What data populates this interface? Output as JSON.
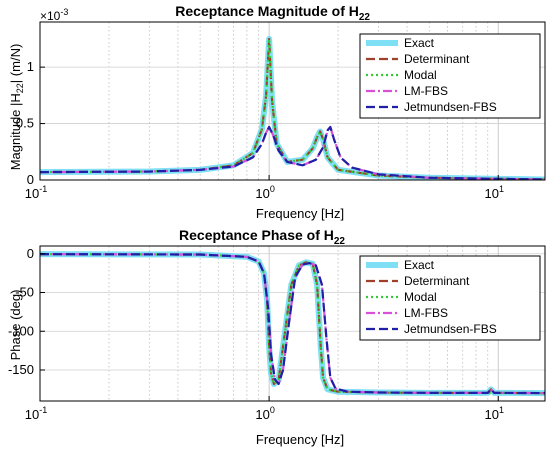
{
  "chart_data": [
    {
      "type": "line",
      "title": "Receptance Magnitude of H",
      "title_subscript": "22",
      "xlabel": "Frequency [Hz]",
      "ylabel_pre": "Magnitude  |H",
      "ylabel_subscript": "22",
      "ylabel_post": "|  (m/N)",
      "xscale": "log",
      "xlim": [
        0.1,
        16
      ],
      "ylim": [
        0,
        0.0014
      ],
      "y_exponent_label": "×10",
      "y_exponent_power": "-3",
      "x_ticks": [
        {
          "base": "10",
          "power": "-1"
        },
        {
          "base": "10",
          "power": "0"
        },
        {
          "base": "10",
          "power": "1"
        }
      ],
      "y_ticks": [
        "0",
        "0.5",
        "1"
      ],
      "legend_position": "top-right",
      "series": [
        {
          "name": "Exact",
          "color": "#7fe0f5",
          "style": "solid",
          "x": [
            0.1,
            0.3,
            0.5,
            0.7,
            0.85,
            0.93,
            0.97,
            1.0,
            1.03,
            1.08,
            1.2,
            1.4,
            1.55,
            1.62,
            1.67,
            1.72,
            1.8,
            2.0,
            3,
            5,
            10,
            16
          ],
          "y": [
            7e-05,
            7.5e-05,
            9e-05,
            0.00013,
            0.00024,
            0.00045,
            0.00075,
            0.00125,
            0.0007,
            0.00032,
            0.00016,
            0.00018,
            0.00028,
            0.00038,
            0.00043,
            0.00036,
            0.0002,
            9e-05,
            4e-05,
            2e-05,
            1e-05,
            5e-06
          ]
        },
        {
          "name": "Determinant",
          "color": "#a0402a",
          "style": "dashed",
          "x": [
            0.1,
            0.3,
            0.5,
            0.7,
            0.85,
            0.93,
            0.97,
            1.0,
            1.03,
            1.08,
            1.2,
            1.4,
            1.55,
            1.62,
            1.67,
            1.72,
            1.8,
            2.0,
            3,
            5,
            10,
            16
          ],
          "y": [
            7e-05,
            7.5e-05,
            9e-05,
            0.00013,
            0.00024,
            0.00045,
            0.00075,
            0.00125,
            0.0007,
            0.00032,
            0.00016,
            0.00018,
            0.00028,
            0.00038,
            0.00043,
            0.00036,
            0.0002,
            9e-05,
            4e-05,
            2e-05,
            1e-05,
            5e-06
          ]
        },
        {
          "name": "Modal",
          "color": "#33cc33",
          "style": "dotted",
          "x": [
            0.1,
            0.3,
            0.5,
            0.7,
            0.85,
            0.93,
            0.97,
            1.0,
            1.03,
            1.08,
            1.2,
            1.4,
            1.55,
            1.62,
            1.67,
            1.72,
            1.8,
            2.0,
            3,
            5,
            10,
            16
          ],
          "y": [
            7e-05,
            7.5e-05,
            9e-05,
            0.00013,
            0.00024,
            0.00045,
            0.00075,
            0.00125,
            0.0007,
            0.00032,
            0.00016,
            0.00018,
            0.00028,
            0.00038,
            0.00043,
            0.00036,
            0.0002,
            9e-05,
            4e-05,
            2e-05,
            1e-05,
            5e-06
          ]
        },
        {
          "name": "LM-FBS",
          "color": "#d94fd9",
          "style": "dashdot",
          "x": [
            0.1,
            0.3,
            0.5,
            0.7,
            0.85,
            0.93,
            0.97,
            1.0,
            1.04,
            1.1,
            1.2,
            1.4,
            1.6,
            1.72,
            1.8,
            1.85,
            1.92,
            2.05,
            2.3,
            3,
            5,
            10,
            16
          ],
          "y": [
            7e-05,
            7.5e-05,
            9e-05,
            0.00012,
            0.0002,
            0.00032,
            0.00042,
            0.00047,
            0.0004,
            0.00026,
            0.00016,
            0.00013,
            0.00018,
            0.00029,
            0.00044,
            0.00047,
            0.00036,
            0.0002,
            0.00011,
            5e-05,
            2e-05,
            1e-05,
            5e-06
          ]
        },
        {
          "name": "Jetmundsen-FBS",
          "color": "#1f1fa8",
          "style": "dashed",
          "x": [
            0.1,
            0.3,
            0.5,
            0.7,
            0.85,
            0.93,
            0.97,
            1.0,
            1.04,
            1.1,
            1.2,
            1.4,
            1.6,
            1.72,
            1.8,
            1.85,
            1.92,
            2.05,
            2.3,
            3,
            5,
            10,
            16
          ],
          "y": [
            7e-05,
            7.5e-05,
            9e-05,
            0.00012,
            0.0002,
            0.00032,
            0.00042,
            0.00047,
            0.0004,
            0.00026,
            0.00016,
            0.00013,
            0.00018,
            0.00029,
            0.00044,
            0.00047,
            0.00036,
            0.0002,
            0.00011,
            5e-05,
            2e-05,
            1e-05,
            5e-06
          ]
        }
      ]
    },
    {
      "type": "line",
      "title": "Receptance Phase of H",
      "title_subscript": "22",
      "xlabel": "Frequency [Hz]",
      "ylabel": "Phase (deg)",
      "xscale": "log",
      "xlim": [
        0.1,
        16
      ],
      "ylim": [
        -190,
        10
      ],
      "x_ticks": [
        {
          "base": "10",
          "power": "-1"
        },
        {
          "base": "10",
          "power": "0"
        },
        {
          "base": "10",
          "power": "1"
        }
      ],
      "y_ticks": [
        "0",
        "-50",
        "-100",
        "-150"
      ],
      "legend_position": "top-right",
      "series": [
        {
          "name": "Exact",
          "color": "#7fe0f5",
          "style": "solid",
          "x": [
            0.1,
            0.5,
            0.8,
            0.9,
            0.95,
            0.98,
            1.0,
            1.02,
            1.05,
            1.1,
            1.15,
            1.25,
            1.35,
            1.45,
            1.55,
            1.62,
            1.68,
            1.72,
            1.8,
            2.0,
            3,
            5,
            9,
            9.3,
            9.6,
            16
          ],
          "y": [
            -0.5,
            -1,
            -4,
            -10,
            -25,
            -60,
            -120,
            -155,
            -168,
            -163,
            -120,
            -40,
            -15,
            -11,
            -13,
            -40,
            -120,
            -160,
            -175,
            -178,
            -179,
            -179.5,
            -179.5,
            -175,
            -179.5,
            -179.8
          ]
        },
        {
          "name": "Determinant",
          "color": "#a0402a",
          "style": "dashed",
          "x": [
            0.1,
            0.5,
            0.8,
            0.9,
            0.95,
            0.98,
            1.0,
            1.02,
            1.05,
            1.1,
            1.15,
            1.25,
            1.35,
            1.45,
            1.55,
            1.62,
            1.68,
            1.72,
            1.8,
            2.0,
            3,
            5,
            9,
            9.3,
            9.6,
            16
          ],
          "y": [
            -0.5,
            -1,
            -4,
            -10,
            -25,
            -60,
            -120,
            -155,
            -168,
            -163,
            -120,
            -40,
            -15,
            -11,
            -13,
            -40,
            -120,
            -160,
            -175,
            -178,
            -179,
            -179.5,
            -179.5,
            -175,
            -179.5,
            -179.8
          ]
        },
        {
          "name": "Modal",
          "color": "#33cc33",
          "style": "dotted",
          "x": [
            0.1,
            0.5,
            0.8,
            0.9,
            0.95,
            0.98,
            1.0,
            1.02,
            1.05,
            1.1,
            1.15,
            1.25,
            1.35,
            1.45,
            1.55,
            1.62,
            1.68,
            1.72,
            1.8,
            2.0,
            3,
            5,
            16
          ],
          "y": [
            -0.5,
            -1,
            -4,
            -10,
            -25,
            -60,
            -120,
            -155,
            -168,
            -163,
            -120,
            -40,
            -15,
            -11,
            -13,
            -40,
            -120,
            -160,
            -175,
            -178,
            -179,
            -179.5,
            -179.8
          ]
        },
        {
          "name": "LM-FBS",
          "color": "#d94fd9",
          "style": "dashdot",
          "x": [
            0.1,
            0.5,
            0.8,
            0.9,
            0.95,
            0.99,
            1.02,
            1.06,
            1.1,
            1.15,
            1.22,
            1.3,
            1.4,
            1.5,
            1.6,
            1.7,
            1.78,
            1.85,
            1.95,
            2.2,
            3,
            5,
            9,
            9.3,
            9.6,
            16
          ],
          "y": [
            -0.5,
            -1,
            -4,
            -10,
            -25,
            -70,
            -130,
            -162,
            -168,
            -150,
            -90,
            -30,
            -14,
            -12,
            -15,
            -40,
            -110,
            -160,
            -174,
            -178,
            -179,
            -179.5,
            -179.5,
            -175,
            -179.5,
            -179.8
          ]
        },
        {
          "name": "Jetmundsen-FBS",
          "color": "#1f1fa8",
          "style": "dashed",
          "x": [
            0.1,
            0.5,
            0.8,
            0.9,
            0.95,
            0.99,
            1.02,
            1.06,
            1.1,
            1.15,
            1.22,
            1.3,
            1.4,
            1.5,
            1.6,
            1.7,
            1.78,
            1.85,
            1.95,
            2.2,
            3,
            5,
            9,
            9.3,
            9.6,
            16
          ],
          "y": [
            -0.5,
            -1,
            -4,
            -10,
            -25,
            -70,
            -130,
            -162,
            -168,
            -150,
            -90,
            -30,
            -14,
            -12,
            -15,
            -40,
            -110,
            -160,
            -174,
            -178,
            -179,
            -179.5,
            -179.5,
            -175,
            -179.5,
            -179.8
          ]
        }
      ]
    }
  ]
}
